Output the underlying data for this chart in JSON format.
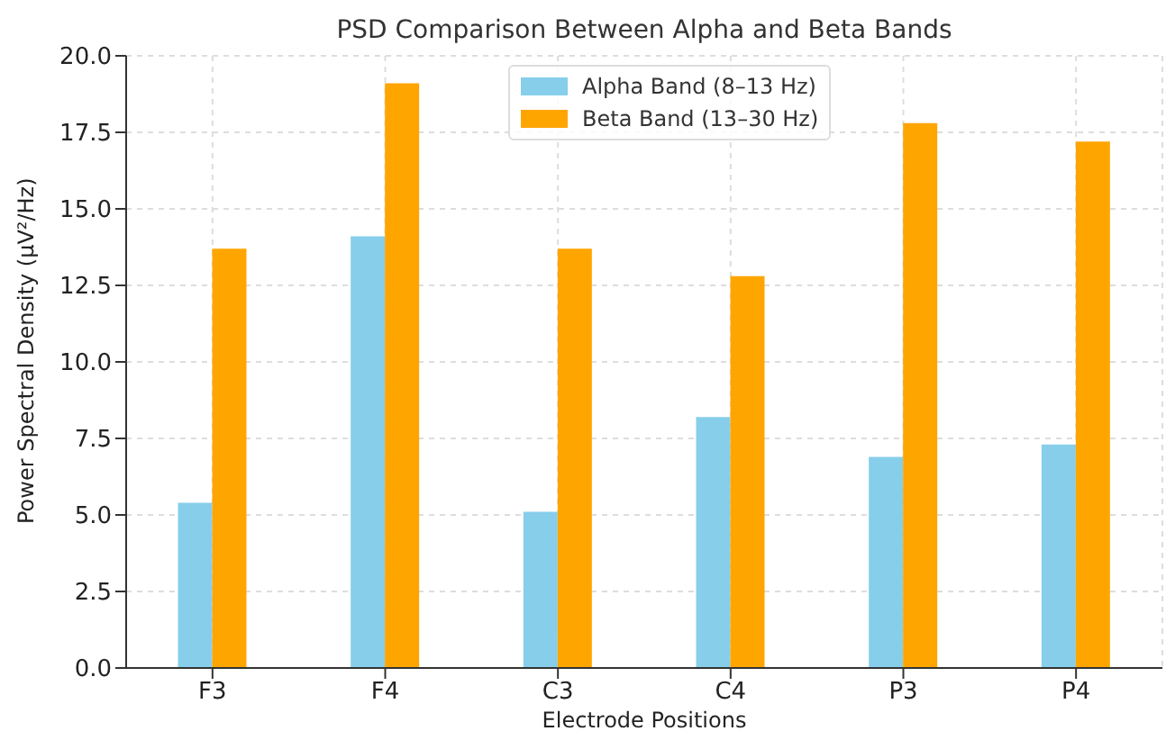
{
  "chart_data": {
    "type": "bar",
    "title": "PSD Comparison Between Alpha and Beta Bands",
    "xlabel": "Electrode Positions",
    "ylabel": "Power Spectral Density (µV²/Hz)",
    "categories": [
      "F3",
      "F4",
      "C3",
      "C4",
      "P3",
      "P4"
    ],
    "series": [
      {
        "name": "Alpha Band (8–13 Hz)",
        "color": "#87ceeb",
        "values": [
          5.4,
          14.1,
          5.1,
          8.2,
          6.9,
          7.3
        ]
      },
      {
        "name": "Beta Band (13–30 Hz)",
        "color": "#ffa500",
        "values": [
          13.7,
          19.1,
          13.7,
          12.8,
          17.8,
          17.2
        ]
      }
    ],
    "ylim": [
      0,
      20
    ],
    "yticks": [
      {
        "value": 0,
        "label": "0.0"
      },
      {
        "value": 2.5,
        "label": "2.5"
      },
      {
        "value": 5,
        "label": "5.0"
      },
      {
        "value": 7.5,
        "label": "7.5"
      },
      {
        "value": 10,
        "label": "10.0"
      },
      {
        "value": 12.5,
        "label": "12.5"
      },
      {
        "value": 15,
        "label": "15.0"
      },
      {
        "value": 17.5,
        "label": "17.5"
      },
      {
        "value": 20,
        "label": "20.0"
      }
    ],
    "grid": true,
    "legend": "top"
  }
}
